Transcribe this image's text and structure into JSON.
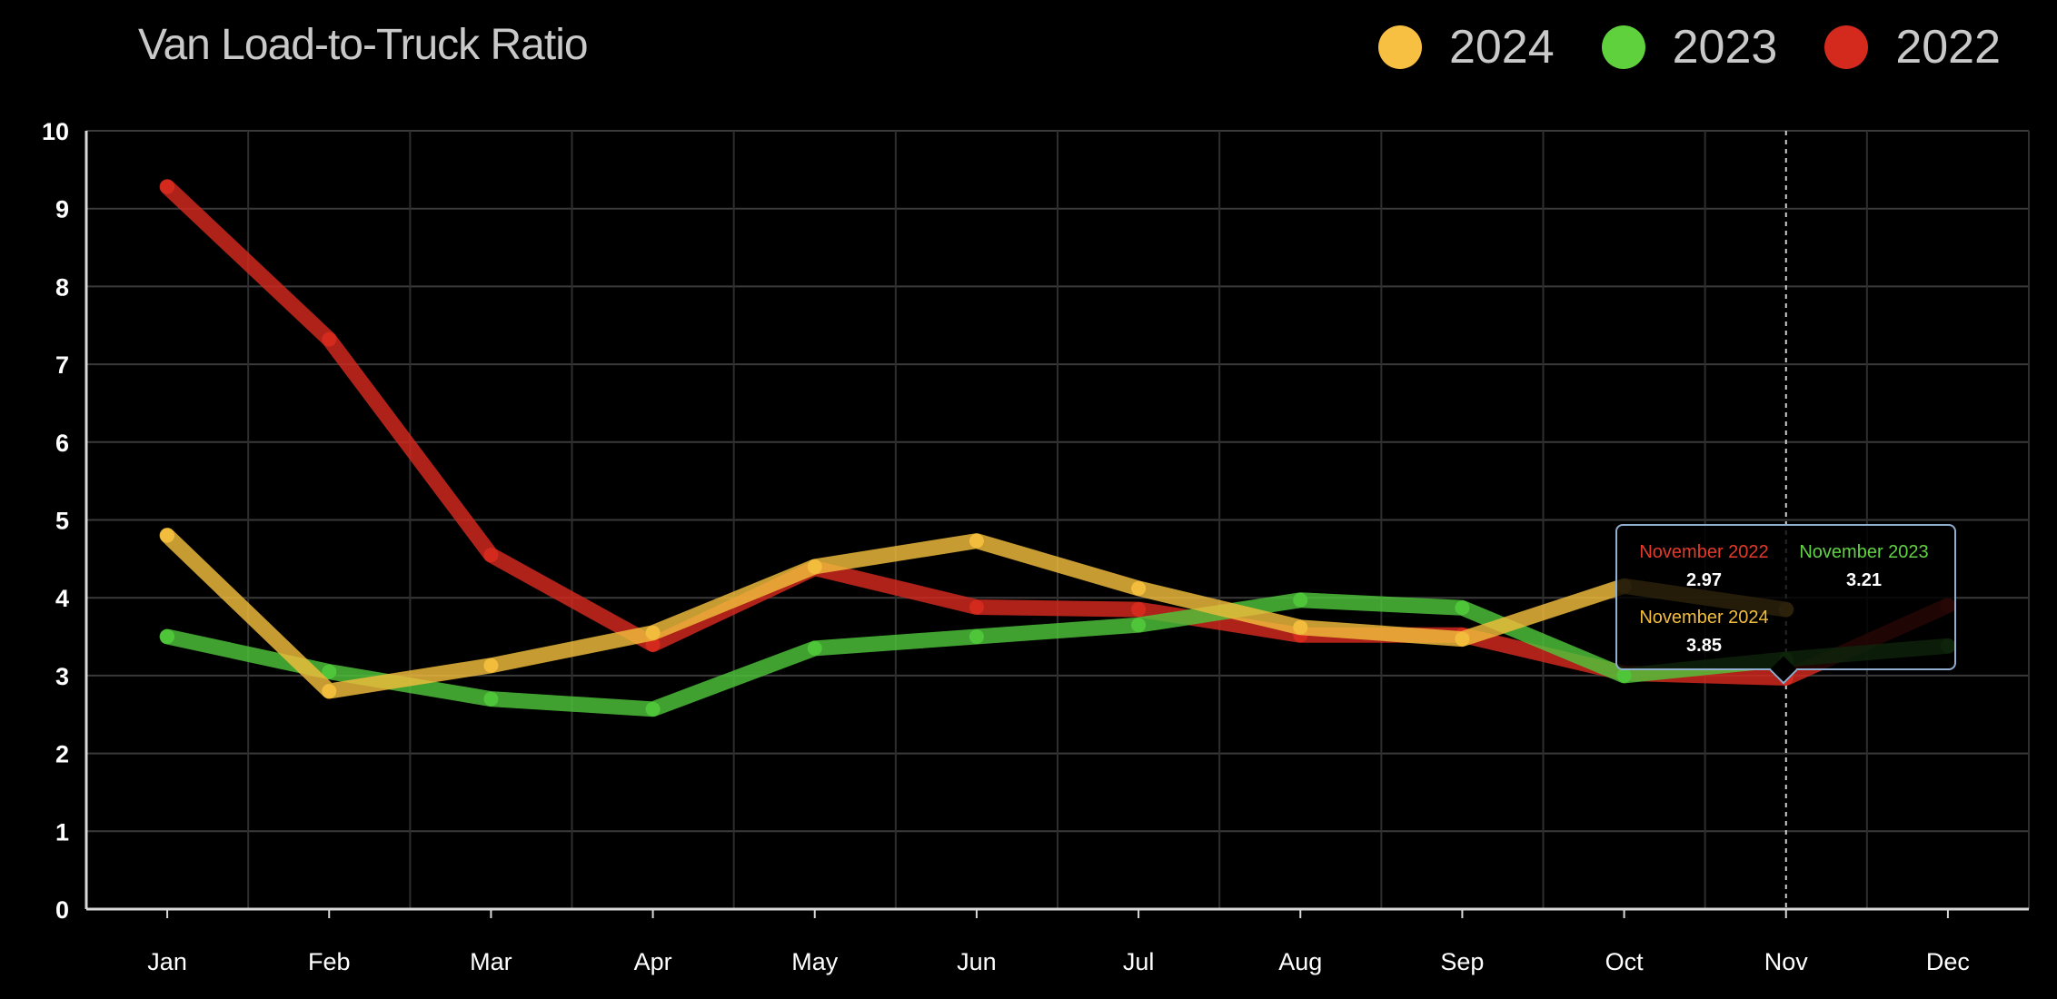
{
  "chart_data": {
    "type": "line",
    "title": "Van Load-to-Truck Ratio",
    "categories": [
      "Jan",
      "Feb",
      "Mar",
      "Apr",
      "May",
      "Jun",
      "Jul",
      "Aug",
      "Sep",
      "Oct",
      "Nov",
      "Dec"
    ],
    "ylim": [
      0,
      10
    ],
    "yticks": [
      "0",
      "1",
      "2",
      "3",
      "4",
      "5",
      "6",
      "7",
      "8",
      "9",
      "10"
    ],
    "grid": true,
    "legend_position": "top-right",
    "series": [
      {
        "name": "2022",
        "color": "#d42a1e",
        "values": [
          9.28,
          7.32,
          4.55,
          3.4,
          4.38,
          3.88,
          3.85,
          3.52,
          3.52,
          3.03,
          2.97,
          3.9
        ]
      },
      {
        "name": "2023",
        "color": "#4fc53a",
        "values": [
          3.5,
          3.05,
          2.7,
          2.57,
          3.35,
          3.5,
          3.65,
          3.97,
          3.87,
          3.0,
          3.21,
          3.38
        ]
      },
      {
        "name": "2024",
        "color": "#f2bd3c",
        "values": [
          4.8,
          2.8,
          3.13,
          3.55,
          4.4,
          4.73,
          4.12,
          3.62,
          3.47,
          4.15,
          3.85,
          null
        ]
      }
    ],
    "hover": {
      "category_index": 10,
      "entries": [
        {
          "title": "November 2022",
          "value": "2.97",
          "color": "#e33a2b"
        },
        {
          "title": "November 2023",
          "value": "3.21",
          "color": "#62d245"
        },
        {
          "title": "November 2024",
          "value": "3.85",
          "color": "#f2bd3c"
        }
      ]
    }
  },
  "legend": [
    {
      "label": "2024",
      "color": "#f7c042"
    },
    {
      "label": "2023",
      "color": "#5fd13d"
    },
    {
      "label": "2022",
      "color": "#d42a1e"
    }
  ]
}
